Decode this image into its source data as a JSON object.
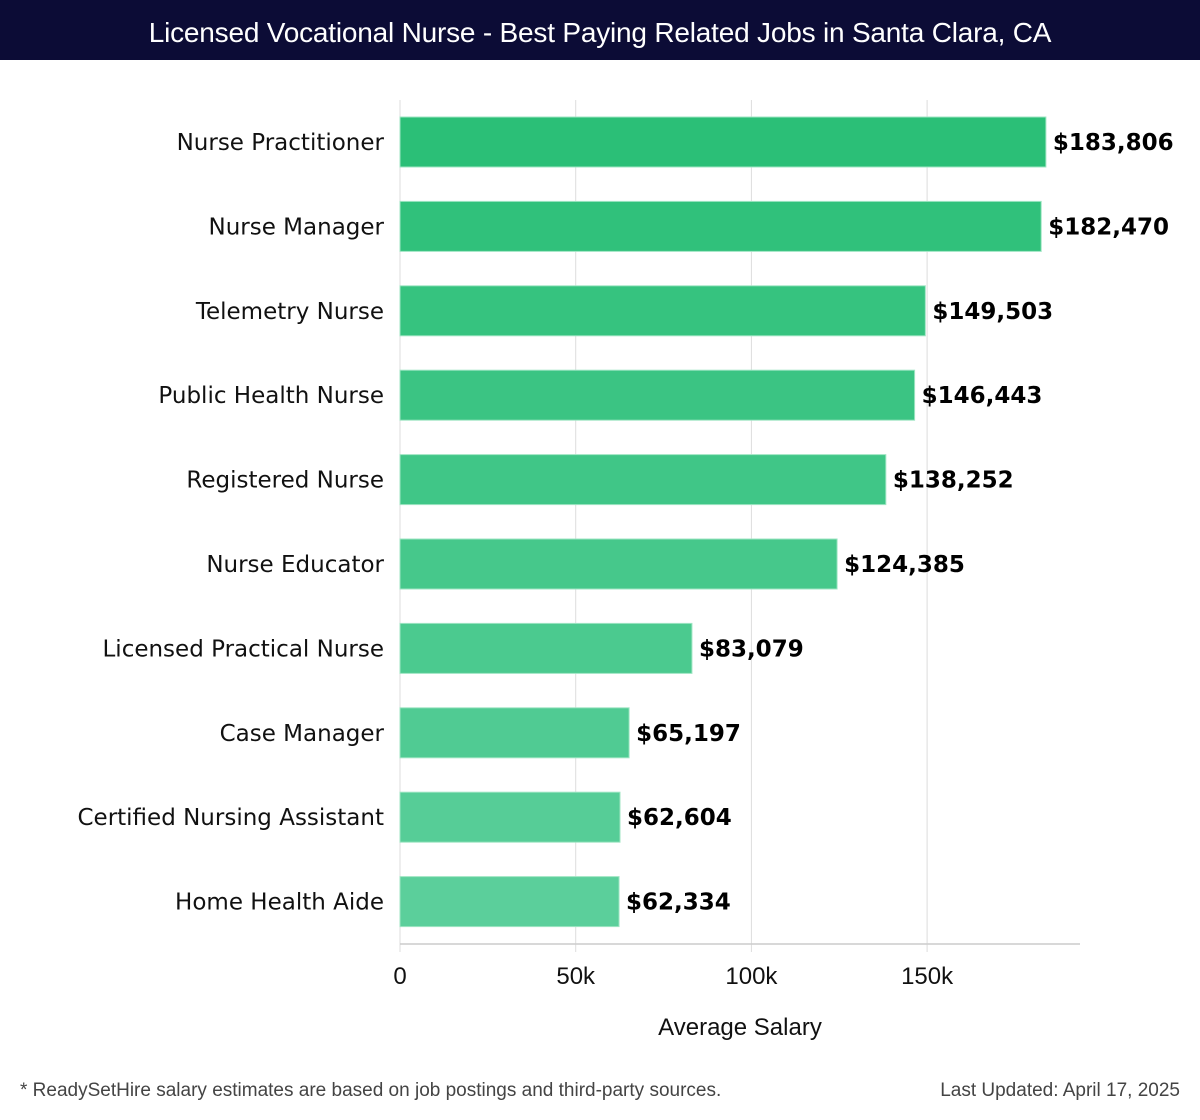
{
  "header": {
    "title": "Licensed Vocational Nurse - Best Paying Related Jobs in Santa Clara, CA"
  },
  "footer": {
    "note": "* ReadySetHire salary estimates are based on job postings and third-party sources.",
    "updated": "Last Updated: April 17, 2025"
  },
  "colors": {
    "header_bg": "#0c0c36",
    "bar_top": "#2bbf77",
    "bar_bottom": "#5bcf9b",
    "grid": "#dddddd"
  },
  "chart_data": {
    "type": "bar",
    "orientation": "horizontal",
    "title": "Licensed Vocational Nurse - Best Paying Related Jobs in Santa Clara, CA",
    "xlabel": "Average Salary",
    "ylabel": "",
    "xlim": [
      0,
      193000
    ],
    "grid": true,
    "ticks": [
      {
        "value": 0,
        "label": "0"
      },
      {
        "value": 50000,
        "label": "50k"
      },
      {
        "value": 100000,
        "label": "100k"
      },
      {
        "value": 150000,
        "label": "150k"
      }
    ],
    "categories": [
      "Nurse Practitioner",
      "Nurse Manager",
      "Telemetry Nurse",
      "Public Health Nurse",
      "Registered Nurse",
      "Nurse Educator",
      "Licensed Practical Nurse",
      "Case Manager",
      "Certified Nursing Assistant",
      "Home Health Aide"
    ],
    "values": [
      183806,
      182470,
      149503,
      146443,
      138252,
      124385,
      83079,
      65197,
      62604,
      62334
    ],
    "labels": [
      "$183,806",
      "$182,470",
      "$149,503",
      "$146,443",
      "$138,252",
      "$124,385",
      "$83,079",
      "$65,197",
      "$62,604",
      "$62,334"
    ]
  }
}
